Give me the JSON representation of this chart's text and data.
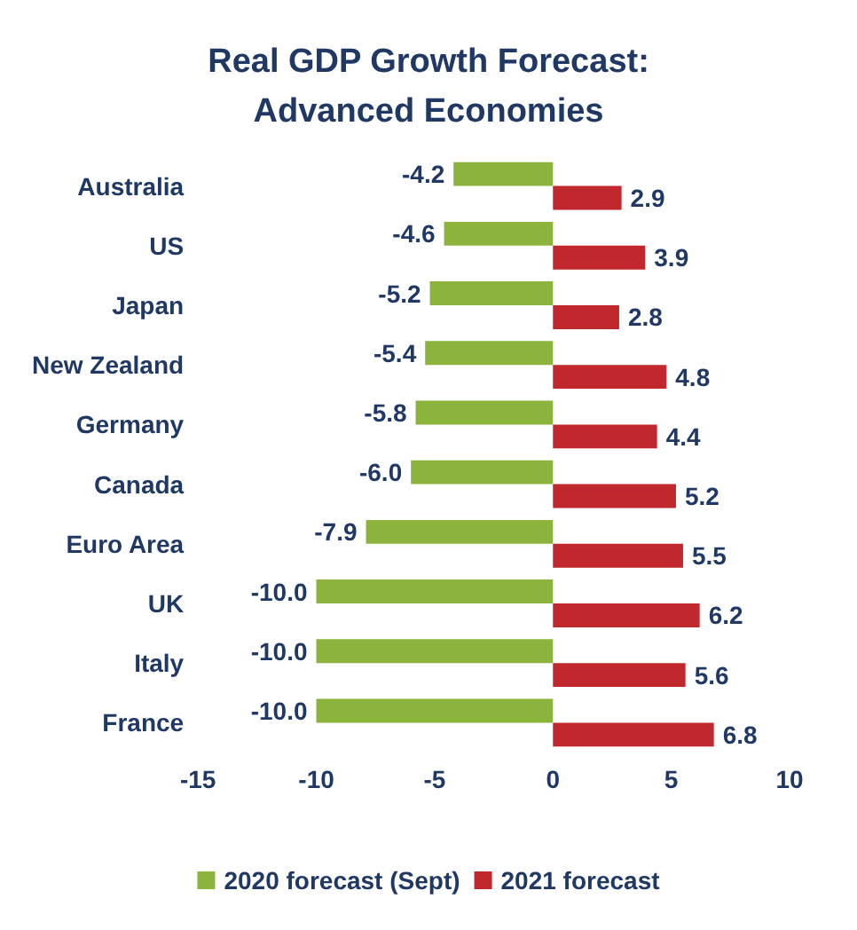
{
  "chart_data": {
    "type": "bar",
    "orientation": "horizontal",
    "title": "Real GDP Growth Forecast:\nAdvanced Economies",
    "categories": [
      "Australia",
      "US",
      "Japan",
      "New Zealand",
      "Germany",
      "Canada",
      "Euro Area",
      "UK",
      "Italy",
      "France"
    ],
    "series": [
      {
        "name": "2020 forecast (Sept)",
        "color": "#8cb43c",
        "values": [
          -4.2,
          -4.6,
          -5.2,
          -5.4,
          -5.8,
          -6.0,
          -7.9,
          -10.0,
          -10.0,
          -10.0
        ],
        "value_labels": [
          "-4.2",
          "-4.6",
          "-5.2",
          "-5.4",
          "-5.8",
          "-6.0",
          "-7.9",
          "-10.0",
          "-10.0",
          "-10.0"
        ]
      },
      {
        "name": "2021 forecast",
        "color": "#c0282d",
        "values": [
          2.9,
          3.9,
          2.8,
          4.8,
          4.4,
          5.2,
          5.5,
          6.2,
          5.6,
          6.8
        ],
        "value_labels": [
          "2.9",
          "3.9",
          "2.8",
          "4.8",
          "4.4",
          "5.2",
          "5.5",
          "6.2",
          "5.6",
          "6.8"
        ]
      }
    ],
    "xlim": [
      -15,
      10
    ],
    "xticks": [
      -15,
      -10,
      -5,
      0,
      5,
      10
    ],
    "grid": false,
    "legend": "bottom"
  }
}
